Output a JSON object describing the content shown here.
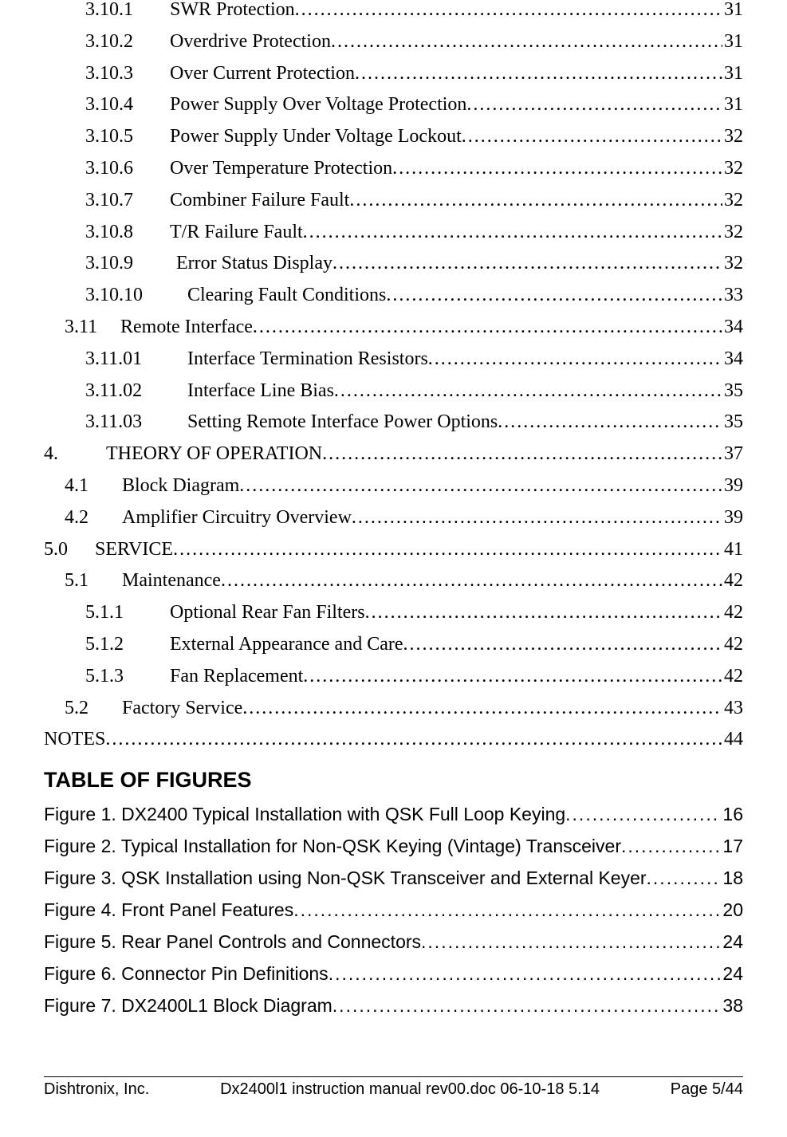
{
  "toc": [
    {
      "indent": "indent-2",
      "numClass": "num-w-l2",
      "num": "3.10.1",
      "title": "SWR Protection",
      "page": "31"
    },
    {
      "indent": "indent-2",
      "numClass": "num-w-l2",
      "num": "3.10.2",
      "title": "Overdrive  Protection ",
      "page": "31"
    },
    {
      "indent": "indent-2",
      "numClass": "num-w-l2",
      "num": "3.10.3",
      "title": "Over Current Protection ",
      "page": "31"
    },
    {
      "indent": "indent-2",
      "numClass": "num-w-l2",
      "num": "3.10.4",
      "title": "Power Supply Over Voltage Protection ",
      "page": "31"
    },
    {
      "indent": "indent-2",
      "numClass": "num-w-l2",
      "num": "3.10.5",
      "title": "Power Supply Under Voltage Lockout ",
      "page": "32"
    },
    {
      "indent": "indent-2",
      "numClass": "num-w-l2",
      "num": "3.10.6",
      "title": "Over Temperature Protection",
      "page": "32"
    },
    {
      "indent": "indent-2",
      "numClass": "num-w-l2",
      "num": "3.10.7",
      "title": "Combiner Failure Fault ",
      "page": "32"
    },
    {
      "indent": "indent-2",
      "numClass": "num-w-l2",
      "num": "3.10.8",
      "title": "T/R Failure Fault",
      "page": "32"
    },
    {
      "indent": "indent-2",
      "numClass": "num-w-l2b",
      "num": "3.10.9",
      "title": "Error Status Display ",
      "page": "32"
    },
    {
      "indent": "indent-2",
      "numClass": "num-w-l2c",
      "num": "3.10.10",
      "title": "Clearing Fault Conditions ",
      "page": "33"
    },
    {
      "indent": "indent-1",
      "numClass": "num-w-l1",
      "num": "3.11",
      "title": "Remote Interface ",
      "page": "34"
    },
    {
      "indent": "indent-2",
      "numClass": "num-w-l2c",
      "num": "3.11.01",
      "title": "Interface Termination Resistors ",
      "page": "34"
    },
    {
      "indent": "indent-2",
      "numClass": "num-w-l2c",
      "num": "3.11.02",
      "title": "Interface Line Bias ",
      "page": "35"
    },
    {
      "indent": "indent-2",
      "numClass": "num-w-l2c",
      "num": "3.11.03",
      "title": "Setting Remote Interface Power Options",
      "page": "35"
    },
    {
      "indent": "indent-0",
      "numClass": "num-w-l0",
      "num": "4.",
      "title": "THEORY OF OPERATION",
      "page": "37"
    },
    {
      "indent": "indent-1",
      "numClass": "num-w-l1b",
      "num": "4.1",
      "title": "Block Diagram ",
      "page": "39"
    },
    {
      "indent": "indent-1",
      "numClass": "num-w-l1b",
      "num": "4.2",
      "title": "Amplifier Circuitry Overview",
      "page": "39"
    },
    {
      "indent": "indent-0",
      "numClass": "num-w-l0b",
      "num": "5.0",
      "title": "SERVICE ",
      "page": "41"
    },
    {
      "indent": "indent-1",
      "numClass": "num-w-l1b",
      "num": "5.1",
      "title": "Maintenance ",
      "page": "42"
    },
    {
      "indent": "indent-2",
      "numClass": "num-w-l2",
      "num": "5.1.1",
      "title": "Optional Rear Fan Filters",
      "page": "42"
    },
    {
      "indent": "indent-2",
      "numClass": "num-w-l2",
      "num": "5.1.2",
      "title": "External Appearance and Care",
      "page": "42"
    },
    {
      "indent": "indent-2",
      "numClass": "num-w-l2",
      "num": "5.1.3",
      "title": "Fan Replacement",
      "page": "42"
    },
    {
      "indent": "indent-1",
      "numClass": "num-w-l1b",
      "num": "5.2",
      "title": "Factory Service",
      "page": "43"
    },
    {
      "indent": "indent-0",
      "numClass": "",
      "num": "",
      "title": "NOTES",
      "page": "44"
    }
  ],
  "figures_heading": "TABLE OF FIGURES",
  "figures": [
    {
      "title": "Figure 1. DX2400 Typical Installation with QSK Full Loop Keying",
      "page": "16"
    },
    {
      "title": "Figure 2. Typical Installation for Non-QSK Keying (Vintage) Transceiver",
      "page": "17"
    },
    {
      "title": "Figure 3. QSK Installation using Non-QSK Transceiver and External Keyer ",
      "page": "18"
    },
    {
      "title": "Figure 4.  Front Panel Features ",
      "page": "20"
    },
    {
      "title": "Figure 5. Rear Panel Controls and Connectors",
      "page": "24"
    },
    {
      "title": "Figure 6. Connector Pin Definitions",
      "page": "24"
    },
    {
      "title": "Figure 7. DX2400L1 Block Diagram",
      "page": "38"
    }
  ],
  "footer": {
    "left": "Dishtronix, Inc.",
    "center": "Dx2400l1 instruction manual rev00.doc 06-10-18 5.14",
    "right": "Page 5/44"
  }
}
